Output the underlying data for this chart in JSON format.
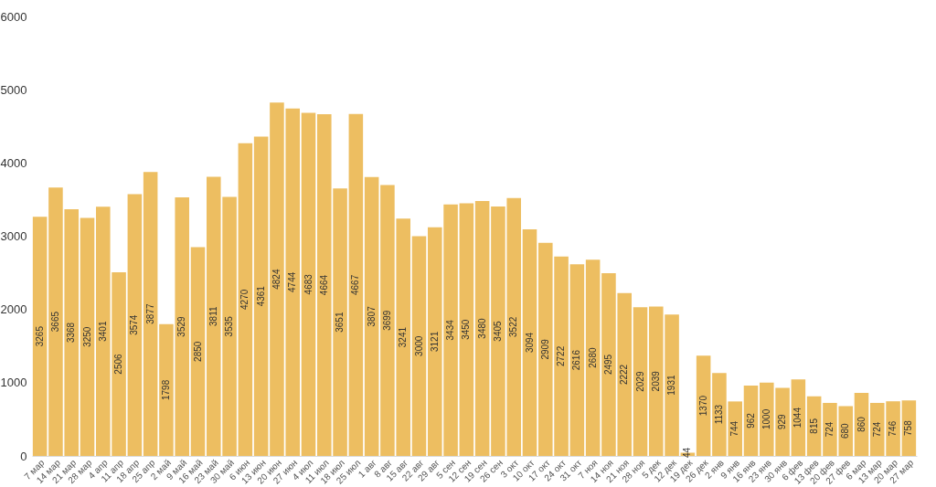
{
  "chart_data": {
    "type": "bar",
    "categories": [
      "7 мар",
      "14 мар",
      "21 мар",
      "28 мар",
      "4 апр",
      "11 апр",
      "18 апр",
      "25 апр",
      "2 май",
      "9 май",
      "16 май",
      "23 май",
      "30 май",
      "6 июн",
      "13 июн",
      "20 июн",
      "27 июн",
      "4 июл",
      "11 июл",
      "18 июл",
      "25 июл",
      "1 авг",
      "8 авг",
      "15 авг",
      "22 авг",
      "29 авг",
      "5 сен",
      "12 сен",
      "19 сен",
      "26 сен",
      "3 окт",
      "10 окт",
      "17 окт",
      "24 окт",
      "31 окт",
      "7 ноя",
      "14 ноя",
      "21 ноя",
      "28 ноя",
      "5 дек",
      "12 дек",
      "19 дек",
      "26 дек",
      "2 янв",
      "9 янв",
      "16 янв",
      "23 янв",
      "30 янв",
      "6 фев",
      "13 фев",
      "20 фев",
      "27 фев",
      "6 мар",
      "13 мар",
      "20 мар",
      "27 мар"
    ],
    "values": [
      3265,
      3665,
      3368,
      3250,
      3401,
      2506,
      3574,
      3877,
      1798,
      3529,
      2850,
      3811,
      3535,
      4270,
      4361,
      4824,
      4744,
      4683,
      4664,
      3651,
      4667,
      3807,
      3699,
      3241,
      3000,
      3121,
      3434,
      3450,
      3480,
      3405,
      3522,
      3094,
      2909,
      2722,
      2616,
      2680,
      2495,
      2222,
      2029,
      2039,
      1931,
      44,
      1370,
      1133,
      744,
      962,
      1000,
      929,
      1044,
      815,
      724,
      680,
      860,
      724,
      746,
      758
    ],
    "color": "#edbe61",
    "ylim": [
      0,
      6000
    ],
    "yticks": [
      0,
      1000,
      2000,
      3000,
      4000,
      5000,
      6000
    ],
    "grid": false,
    "data_labels": true
  }
}
